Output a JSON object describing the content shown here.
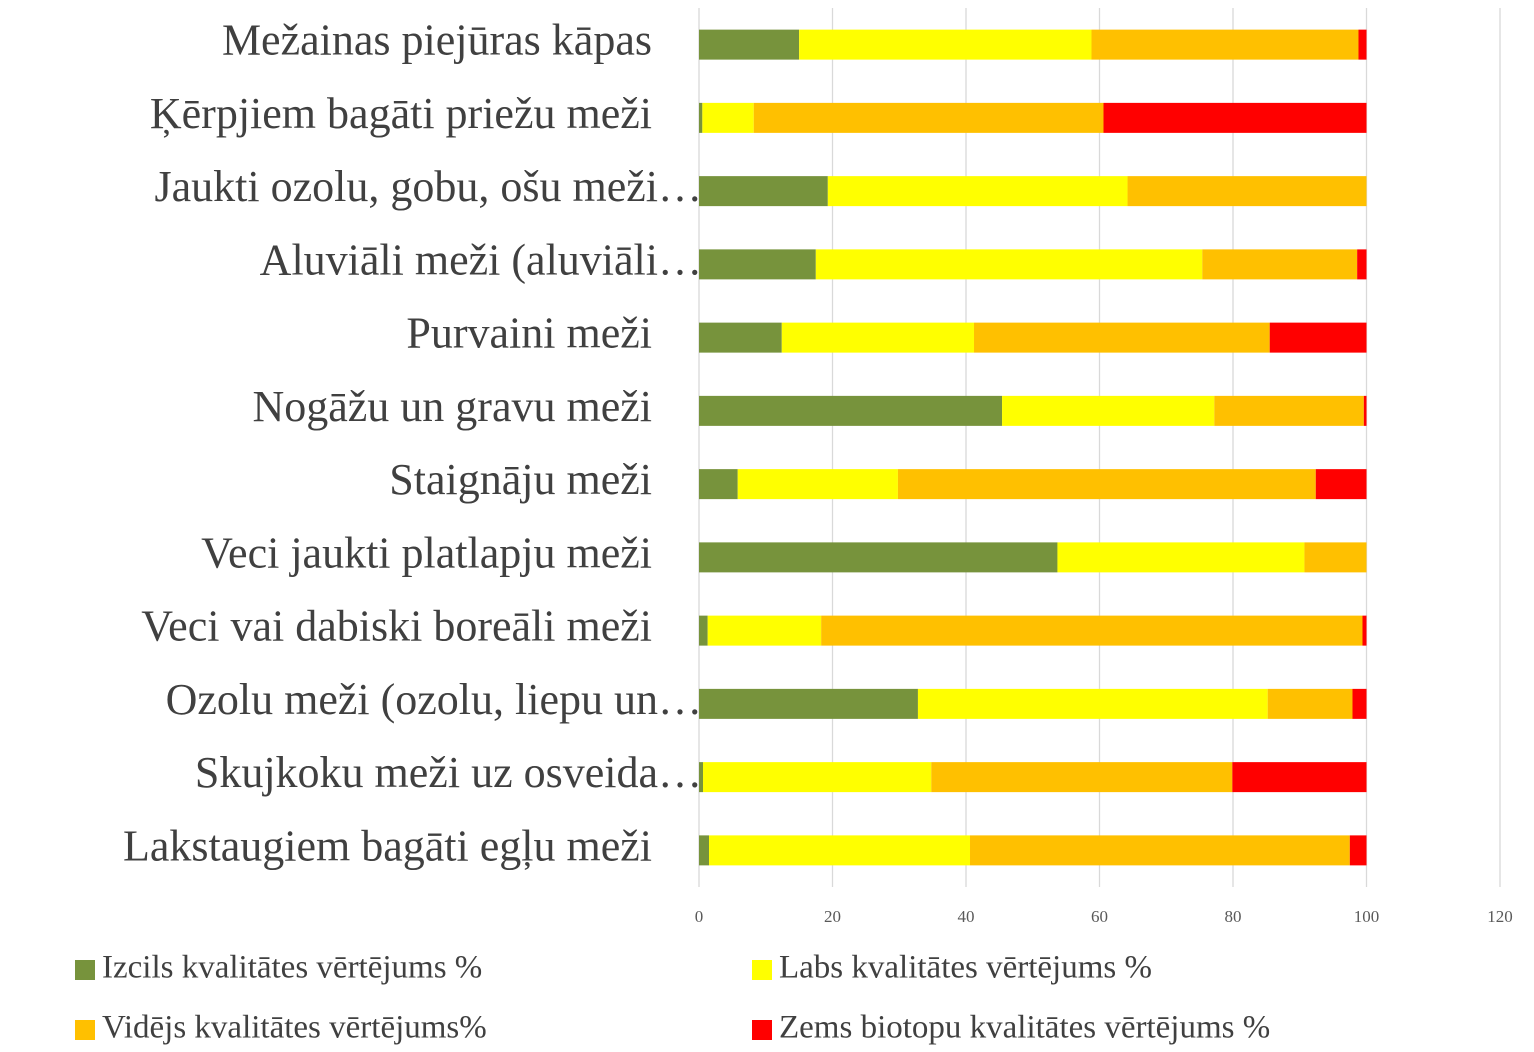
{
  "chart_data": {
    "type": "bar",
    "orientation": "horizontal",
    "stacked": true,
    "categories": [
      "Mežainas piejūras kāpas",
      "Ķērpjiem bagāti priežu meži",
      "Jaukti ozolu, gobu, ošu meži…",
      "Aluviāli meži (aluviāli…",
      "Purvaini meži",
      "Nogāžu un gravu meži",
      "Staignāju meži",
      "Veci jaukti platlapju meži",
      "Veci vai dabiski boreāli meži",
      "Ozolu meži (ozolu, liepu un…",
      "Skujkoku meži uz osveida…",
      "Lakstaugiem bagāti egļu meži"
    ],
    "series": [
      {
        "name": "Izcils kvalitātes vērtējums %",
        "color": "#77933c",
        "values": [
          15,
          0.5,
          19.3,
          17.5,
          12.4,
          45.4,
          5.8,
          53.7,
          1.3,
          32.8,
          0.6,
          1.5
        ]
      },
      {
        "name": "Labs kvalitātes vērtējums %",
        "color": "#ffff00",
        "values": [
          43.8,
          7.7,
          44.9,
          57.9,
          28.8,
          31.8,
          24,
          37,
          17,
          52.4,
          34.2,
          39.1
        ]
      },
      {
        "name": "Vidējs kvalitātes vērtējums%",
        "color": "#ffc000",
        "values": [
          40,
          52.4,
          35.8,
          23.2,
          44.3,
          22.4,
          62.6,
          9.3,
          81.1,
          12.7,
          45.1,
          56.9
        ]
      },
      {
        "name": "Zems biotopu kvalitātes vērtējums %",
        "color": "#ff0000",
        "values": [
          1.2,
          39.4,
          0,
          1.4,
          14.5,
          0.4,
          7.6,
          0,
          0.6,
          2.1,
          20.1,
          2.5
        ]
      }
    ],
    "xlim": [
      0,
      120
    ],
    "xticks": [
      0,
      20,
      40,
      60,
      80,
      100,
      120
    ],
    "grid": true,
    "legend": "bottom"
  }
}
